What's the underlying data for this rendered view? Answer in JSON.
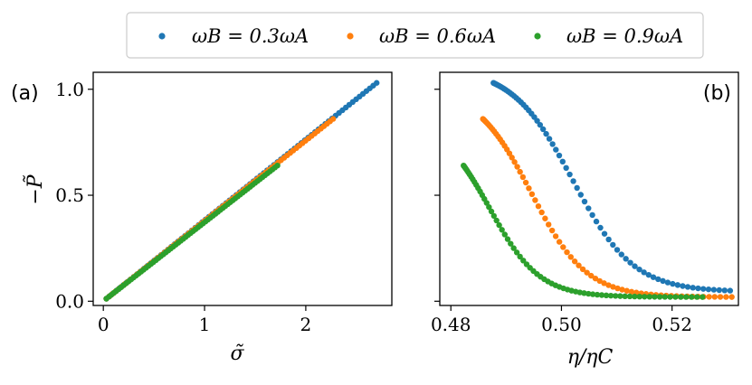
{
  "chart_data": [
    {
      "type": "scatter",
      "panel_label": "(a)",
      "xlabel": "σ̃",
      "ylabel": "−P̃",
      "xlim": [
        -0.1,
        2.85
      ],
      "ylim": [
        -0.02,
        1.08
      ],
      "xticks": [
        0,
        1,
        2
      ],
      "yticks": [
        0.0,
        0.5,
        1.0
      ],
      "xtick_labels": [
        "0",
        "1",
        "2"
      ],
      "ytick_labels": [
        "0.0",
        "0.5",
        "1.0"
      ],
      "grid": false,
      "series": [
        {
          "name": "ωB = 0.3ωA",
          "color": "#1f77b4",
          "x_start": 0.03,
          "x_end": 2.7,
          "y_start": 0.012,
          "y_end": 1.03,
          "n": 80
        },
        {
          "name": "ωB = 0.6ωA",
          "color": "#ff7f0e",
          "x_start": 0.03,
          "x_end": 2.27,
          "y_start": 0.012,
          "y_end": 0.86,
          "n": 75
        },
        {
          "name": "ωB = 0.9ωA",
          "color": "#2ca02c",
          "x_start": 0.03,
          "x_end": 1.72,
          "y_start": 0.012,
          "y_end": 0.64,
          "n": 70
        }
      ]
    },
    {
      "type": "scatter",
      "panel_label": "(b)",
      "xlabel": "η/ηC",
      "ylabel": "",
      "xlim": [
        0.478,
        0.532
      ],
      "ylim": [
        -0.02,
        1.08
      ],
      "xticks": [
        0.48,
        0.5,
        0.52
      ],
      "xtick_labels": [
        "0.48",
        "0.50",
        "0.52"
      ],
      "grid": false,
      "series": [
        {
          "name": "ωB = 0.3ωA",
          "color": "#1f77b4",
          "x_min": 0.4877,
          "x_max": 0.5305,
          "y_max": 1.03,
          "y_min": 0.05,
          "steep_center": 0.502,
          "steep_width": 0.0055
        },
        {
          "name": "ωB = 0.6ωA",
          "color": "#ff7f0e",
          "x_min": 0.4858,
          "x_max": 0.5308,
          "y_max": 0.86,
          "y_min": 0.02,
          "steep_center": 0.4945,
          "steep_width": 0.005
        },
        {
          "name": "ωB = 0.9ωA",
          "color": "#2ca02c",
          "x_min": 0.4823,
          "x_max": 0.5255,
          "y_max": 0.64,
          "y_min": 0.02,
          "steep_center": 0.487,
          "steep_width": 0.0045
        }
      ]
    }
  ],
  "legend": {
    "items": [
      {
        "label": "ωB = 0.3ωA",
        "color": "#1f77b4"
      },
      {
        "label": "ωB = 0.6ωA",
        "color": "#ff7f0e"
      },
      {
        "label": "ωB = 0.9ωA",
        "color": "#2ca02c"
      }
    ]
  }
}
